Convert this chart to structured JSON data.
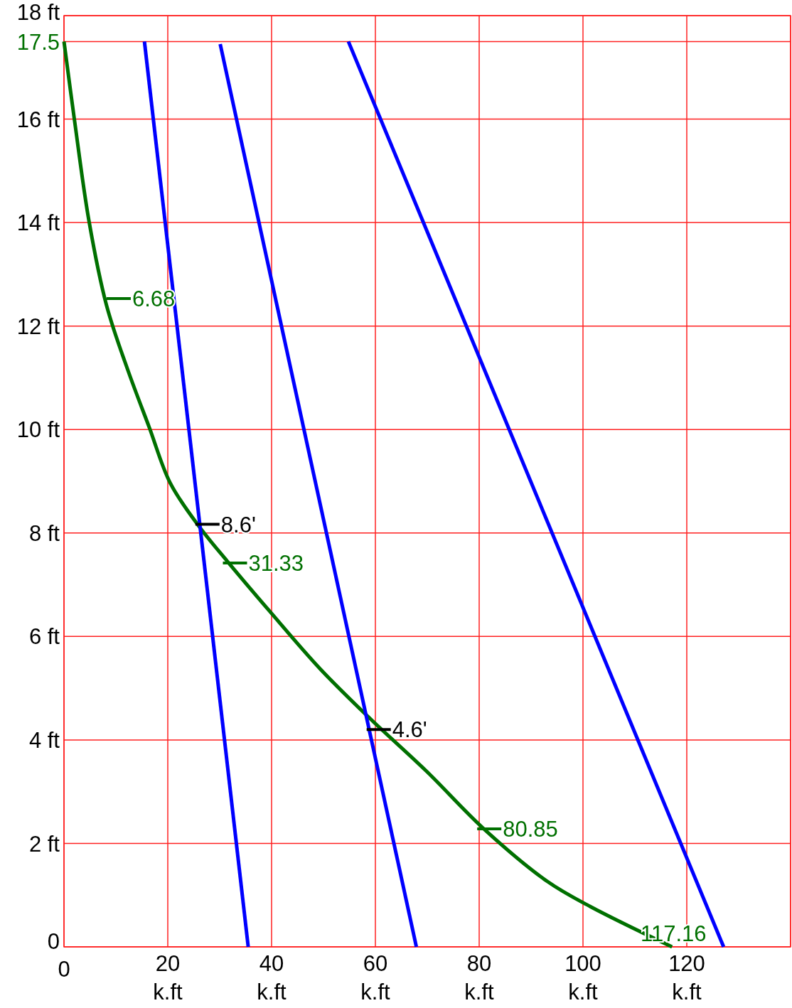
{
  "chart_data": {
    "type": "line",
    "series": [
      {
        "color": "#007000",
        "x": [
          0,
          2.05,
          4.8,
          8.2,
          12.3,
          16.4,
          20.5,
          26,
          31.5,
          39.7,
          49.3,
          58.9,
          69.9,
          80.8,
          93.2,
          101.4,
          117.16
        ],
        "values": [
          17.5,
          15.96,
          14.04,
          12.4,
          11.15,
          10.05,
          8.96,
          8.13,
          7.45,
          6.48,
          5.38,
          4.42,
          3.39,
          2.29,
          1.26,
          0.78,
          0
        ]
      },
      {
        "color": "#0000ff",
        "x": [
          15.5,
          35.5
        ],
        "values": [
          17.5,
          0
        ]
      },
      {
        "color": "#0000ff",
        "x": [
          30.1,
          67.9
        ],
        "values": [
          17.45,
          0
        ]
      },
      {
        "color": "#0000ff",
        "x": [
          54.8,
          127.1
        ],
        "values": [
          17.5,
          0
        ]
      }
    ],
    "xlim": [
      0,
      140
    ],
    "xticks": [
      0,
      {
        "value": 20,
        "label": "20 k.ft"
      },
      {
        "value": 40,
        "label": "40 k.ft"
      },
      {
        "value": 60,
        "label": "60 k.ft"
      },
      {
        "value": 80,
        "label": "80 k.ft"
      },
      {
        "value": 100,
        "label": "100 k.ft"
      },
      {
        "value": 120,
        "label": "120 k.ft"
      },
      {
        "value": 140,
        "label": null
      }
    ],
    "ylim": [
      0,
      18
    ],
    "yticks": [
      0,
      {
        "value": 2,
        "label": "2 ft"
      },
      {
        "value": 4,
        "label": "4 ft"
      },
      {
        "value": 6,
        "label": "6 ft"
      },
      {
        "value": 8,
        "label": "8 ft"
      },
      {
        "value": 10,
        "label": "10 ft"
      },
      {
        "value": 12,
        "label": "12 ft"
      },
      {
        "value": 14,
        "label": "14 ft"
      },
      {
        "value": 16,
        "label": "16 ft"
      },
      17.5,
      {
        "value": 18,
        "label": "18 ft"
      }
    ],
    "grid": true,
    "marker": "none",
    "line_style": "solid",
    "annotations": [
      {
        "text": "6.68",
        "x": 8.9,
        "y": 12.53
      },
      {
        "text": "8.6'",
        "x": 26,
        "y": 8.17
      },
      {
        "text": "31.33",
        "x": 31.3,
        "y": 7.42
      },
      {
        "text": "4.6'",
        "x": 59,
        "y": 4.2
      },
      {
        "text": "80.85",
        "x": 80.3,
        "y": 2.28
      },
      {
        "text": "117.16",
        "x": 117.16,
        "y": 0
      }
    ]
  }
}
